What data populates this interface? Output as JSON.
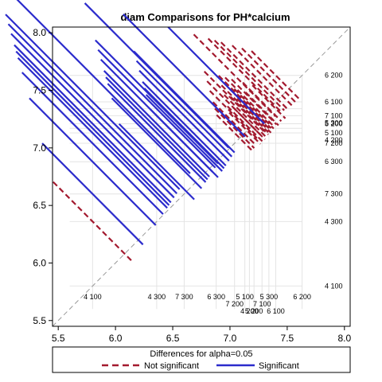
{
  "chart_data": {
    "type": "line",
    "title": "diam Comparisons for PH*calcium",
    "x_ticks": [
      "5.5",
      "6.0",
      "6.5",
      "7.0",
      "7.5",
      "8.0"
    ],
    "y_ticks": [
      "5.5",
      "6.0",
      "6.5",
      "7.0",
      "7.5",
      "8.0"
    ],
    "xlim": [
      5.45,
      8.05
    ],
    "ylim": [
      5.45,
      8.05
    ],
    "reference_line": {
      "from": [
        5.45,
        5.45
      ],
      "to": [
        8.05,
        8.05
      ],
      "style": "dashed",
      "color": "#999999"
    },
    "levels": [
      {
        "label": "4 100",
        "value": 5.8
      },
      {
        "label": "4 300",
        "value": 6.36
      },
      {
        "label": "7 300",
        "value": 6.6
      },
      {
        "label": "6 300",
        "value": 6.88
      },
      {
        "label": "7 200",
        "value": 7.04
      },
      {
        "label": "5 100",
        "value": 7.13
      },
      {
        "label": "4 200",
        "value": 7.17
      },
      {
        "label": "5 200",
        "value": 7.21
      },
      {
        "label": "7 100",
        "value": 7.28
      },
      {
        "label": "5 300",
        "value": 7.34
      },
      {
        "label": "6 100",
        "value": 7.4
      },
      {
        "label": "6 200",
        "value": 7.63
      }
    ],
    "series": [
      {
        "name": "Not significant",
        "color": "#a31a2f",
        "style": "dashed",
        "pairs": [
          [
            0,
            1
          ],
          [
            4,
            5
          ],
          [
            4,
            6
          ],
          [
            4,
            7
          ],
          [
            4,
            8
          ],
          [
            4,
            9
          ],
          [
            4,
            10
          ],
          [
            4,
            11
          ],
          [
            5,
            6
          ],
          [
            5,
            7
          ],
          [
            5,
            8
          ],
          [
            5,
            9
          ],
          [
            5,
            10
          ],
          [
            5,
            11
          ],
          [
            6,
            7
          ],
          [
            6,
            8
          ],
          [
            6,
            9
          ],
          [
            6,
            10
          ],
          [
            6,
            11
          ],
          [
            7,
            8
          ],
          [
            7,
            9
          ],
          [
            7,
            10
          ],
          [
            7,
            11
          ],
          [
            8,
            9
          ],
          [
            8,
            10
          ],
          [
            8,
            11
          ],
          [
            9,
            10
          ],
          [
            9,
            11
          ],
          [
            10,
            11
          ]
        ]
      },
      {
        "name": "Significant",
        "color": "#2b2bcc",
        "style": "solid",
        "pairs": [
          [
            0,
            2
          ],
          [
            0,
            3
          ],
          [
            0,
            4
          ],
          [
            0,
            5
          ],
          [
            0,
            6
          ],
          [
            0,
            7
          ],
          [
            0,
            8
          ],
          [
            0,
            9
          ],
          [
            0,
            10
          ],
          [
            0,
            11
          ],
          [
            1,
            3
          ],
          [
            1,
            4
          ],
          [
            1,
            5
          ],
          [
            1,
            6
          ],
          [
            1,
            7
          ],
          [
            1,
            8
          ],
          [
            1,
            9
          ],
          [
            1,
            10
          ],
          [
            1,
            11
          ],
          [
            2,
            4
          ],
          [
            2,
            5
          ],
          [
            2,
            6
          ],
          [
            2,
            7
          ],
          [
            2,
            8
          ],
          [
            2,
            9
          ],
          [
            2,
            10
          ],
          [
            2,
            11
          ],
          [
            3,
            11
          ]
        ]
      }
    ],
    "legend": {
      "title": "Differences for alpha=0.05",
      "position": "bottom",
      "items": [
        {
          "label": "Not significant",
          "color": "#a31a2f",
          "style": "dashed"
        },
        {
          "label": "Significant",
          "color": "#2b2bcc",
          "style": "solid"
        }
      ]
    }
  }
}
